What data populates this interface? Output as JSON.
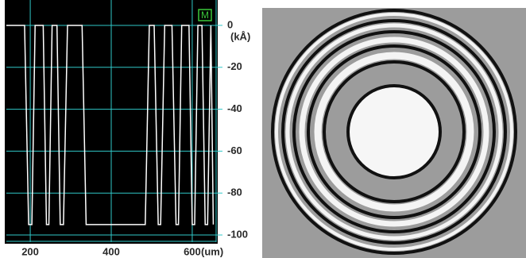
{
  "chart_data": {
    "type": "line",
    "marker_label": "M",
    "y_unit": "(kÅ)",
    "x_unit": "(um)",
    "x": [
      141,
      186,
      196,
      204,
      212,
      232,
      240,
      246,
      254,
      266,
      274,
      282,
      292,
      328,
      338,
      484,
      494,
      506,
      516,
      522,
      532,
      550,
      560,
      566,
      574,
      592,
      600,
      606,
      614,
      624,
      632,
      638,
      646,
      652
    ],
    "series": [
      {
        "color": "#ffffff",
        "values": [
          0,
          0,
          -95,
          -95,
          0,
          0,
          -95,
          -95,
          0,
          0,
          -95,
          -95,
          0,
          0,
          -95,
          -95,
          0,
          0,
          -95,
          -95,
          0,
          0,
          -95,
          -95,
          0,
          0,
          -95,
          -95,
          0,
          0,
          -95,
          -95,
          0,
          -95
        ]
      }
    ],
    "xlim": [
      141,
      659
    ],
    "ylim": [
      -103.4,
      12.1
    ],
    "xticks": [
      200,
      400,
      600
    ],
    "yticks": [
      0,
      -20,
      -40,
      -60,
      -80,
      -100
    ],
    "grid": true,
    "grid_color": "#30c8c8"
  }
}
